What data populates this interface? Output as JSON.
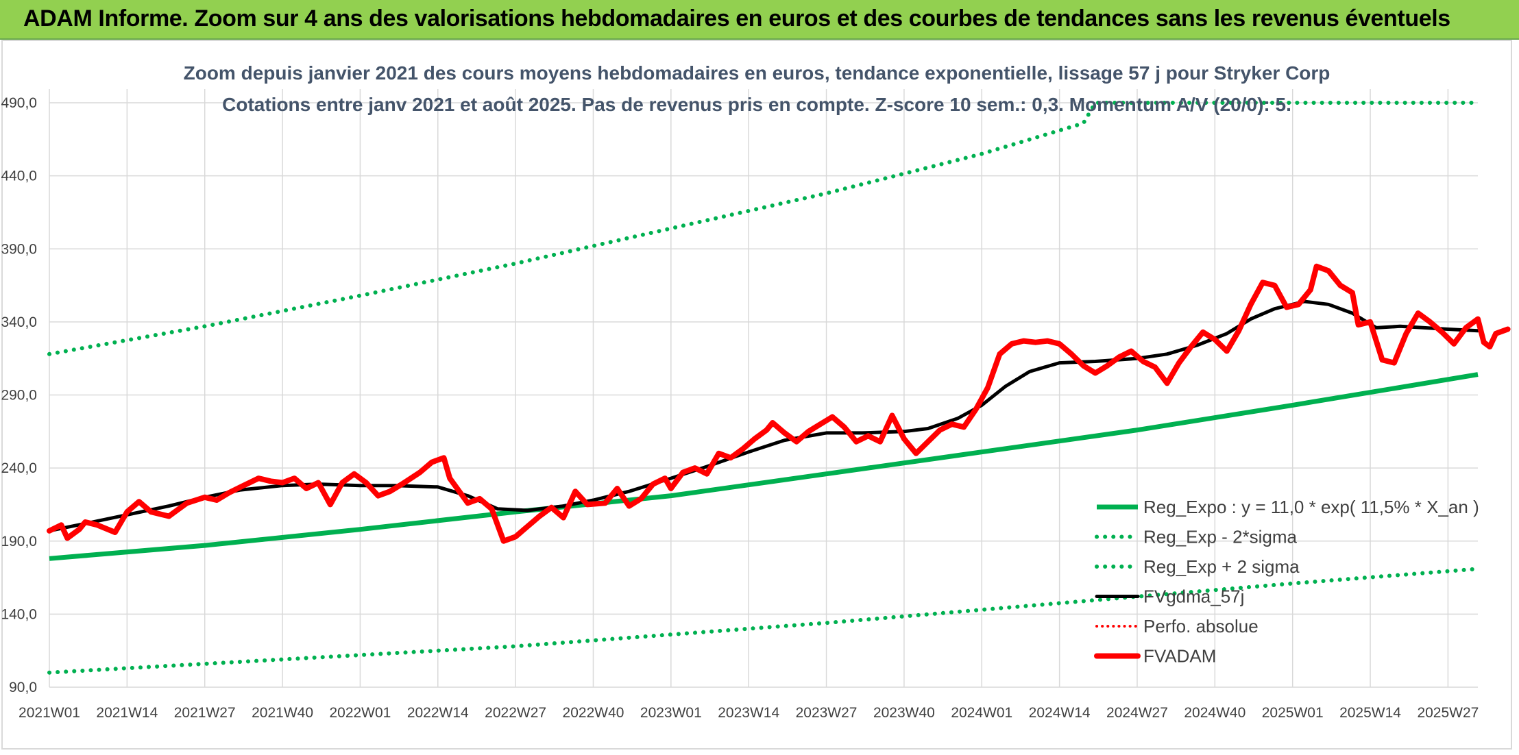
{
  "header": {
    "title": "ADAM Informe. Zoom sur 4 ans des valorisations hebdomadaires en euros et des courbes de tendances sans les revenus éventuels"
  },
  "colors": {
    "banner": "#92d050",
    "trend": "#00b050",
    "sigma": "#00b050",
    "smoothed": "#000000",
    "absolute": "#ff0000",
    "price": "#ff0000",
    "title_text": "#44546a"
  },
  "chart_data": {
    "type": "line",
    "title": "Zoom depuis janvier 2021 des cours moyens hebdomadaires en euros, tendance exponentielle, lissage 57 j pour Stryker Corp",
    "subtitle": "Cotations entre janv 2021 et août 2025. Pas de revenus pris en compte. Z-score 10 sem.: 0,3. Momentum A/V (20/0): 5.",
    "xlabel": "",
    "ylabel": "",
    "ylim": [
      90,
      490
    ],
    "yticks": [
      "90,0",
      "140,0",
      "190,0",
      "240,0",
      "290,0",
      "340,0",
      "390,0",
      "440,0",
      "490,0"
    ],
    "x_range_weeks": [
      0,
      239
    ],
    "xticks": [
      {
        "week": 0,
        "label": "2021W01"
      },
      {
        "week": 13,
        "label": "2021W14"
      },
      {
        "week": 26,
        "label": "2021W27"
      },
      {
        "week": 39,
        "label": "2021W40"
      },
      {
        "week": 52,
        "label": "2022W01"
      },
      {
        "week": 65,
        "label": "2022W14"
      },
      {
        "week": 78,
        "label": "2022W27"
      },
      {
        "week": 91,
        "label": "2022W40"
      },
      {
        "week": 104,
        "label": "2023W01"
      },
      {
        "week": 117,
        "label": "2023W14"
      },
      {
        "week": 130,
        "label": "2023W27"
      },
      {
        "week": 143,
        "label": "2023W40"
      },
      {
        "week": 156,
        "label": "2024W01"
      },
      {
        "week": 169,
        "label": "2024W14"
      },
      {
        "week": 182,
        "label": "2024W27"
      },
      {
        "week": 195,
        "label": "2024W40"
      },
      {
        "week": 208,
        "label": "2025W01"
      },
      {
        "week": 221,
        "label": "2025W14"
      },
      {
        "week": 234,
        "label": "2025W27"
      }
    ],
    "grid": true,
    "legend_position": "bottom-right",
    "series": [
      {
        "name": "Reg_Expo : y = 11,0 * exp( 11,5% *  X_an )",
        "key": "trend",
        "style": "solid",
        "color": "#00b050",
        "points": [
          [
            0,
            178
          ],
          [
            26,
            187
          ],
          [
            52,
            198
          ],
          [
            78,
            210
          ],
          [
            104,
            221
          ],
          [
            130,
            236
          ],
          [
            156,
            251
          ],
          [
            182,
            266
          ],
          [
            208,
            283
          ],
          [
            239,
            304
          ]
        ]
      },
      {
        "name": "Reg_Exp - 2*sigma",
        "key": "lower",
        "style": "dotted",
        "color": "#00b050",
        "points": [
          [
            0,
            100
          ],
          [
            26,
            106
          ],
          [
            52,
            112
          ],
          [
            78,
            118
          ],
          [
            104,
            126
          ],
          [
            130,
            134
          ],
          [
            156,
            143
          ],
          [
            182,
            152
          ],
          [
            208,
            161
          ],
          [
            239,
            171
          ]
        ]
      },
      {
        "name": "Reg_Exp + 2 sigma",
        "key": "upper",
        "style": "dotted",
        "color": "#00b050",
        "points": [
          [
            0,
            318
          ],
          [
            26,
            337
          ],
          [
            52,
            358
          ],
          [
            78,
            380
          ],
          [
            104,
            404
          ],
          [
            130,
            428
          ],
          [
            156,
            455
          ],
          [
            173,
            476
          ],
          [
            175,
            490
          ],
          [
            239,
            490
          ]
        ]
      },
      {
        "name": "FVgdma_57j",
        "key": "smoothed",
        "style": "solid",
        "color": "#000000",
        "points": [
          [
            0,
            197
          ],
          [
            6,
            202
          ],
          [
            13,
            208
          ],
          [
            20,
            214
          ],
          [
            26,
            220
          ],
          [
            32,
            225
          ],
          [
            39,
            228
          ],
          [
            45,
            229
          ],
          [
            52,
            228
          ],
          [
            58,
            228
          ],
          [
            65,
            227
          ],
          [
            70,
            221
          ],
          [
            75,
            212
          ],
          [
            80,
            211
          ],
          [
            86,
            214
          ],
          [
            91,
            218
          ],
          [
            97,
            224
          ],
          [
            104,
            233
          ],
          [
            110,
            241
          ],
          [
            117,
            251
          ],
          [
            123,
            259
          ],
          [
            130,
            264
          ],
          [
            136,
            264
          ],
          [
            143,
            265
          ],
          [
            147,
            267
          ],
          [
            152,
            274
          ],
          [
            156,
            283
          ],
          [
            160,
            296
          ],
          [
            164,
            306
          ],
          [
            169,
            312
          ],
          [
            175,
            313
          ],
          [
            182,
            315
          ],
          [
            187,
            318
          ],
          [
            192,
            324
          ],
          [
            197,
            332
          ],
          [
            201,
            342
          ],
          [
            205,
            349
          ],
          [
            210,
            354
          ],
          [
            214,
            352
          ],
          [
            218,
            346
          ],
          [
            222,
            336
          ],
          [
            226,
            337
          ],
          [
            230,
            336
          ],
          [
            234,
            335
          ],
          [
            239,
            334
          ]
        ]
      },
      {
        "name": "FVADAM",
        "key": "price",
        "style": "solid",
        "color": "#ff0000",
        "points": [
          [
            0,
            197
          ],
          [
            2,
            201
          ],
          [
            3,
            192
          ],
          [
            5,
            198
          ],
          [
            6,
            203
          ],
          [
            8,
            201
          ],
          [
            11,
            196
          ],
          [
            13,
            210
          ],
          [
            15,
            217
          ],
          [
            17,
            210
          ],
          [
            20,
            207
          ],
          [
            23,
            216
          ],
          [
            26,
            220
          ],
          [
            28,
            218
          ],
          [
            30,
            223
          ],
          [
            32,
            227
          ],
          [
            35,
            233
          ],
          [
            37,
            231
          ],
          [
            39,
            230
          ],
          [
            41,
            233
          ],
          [
            43,
            226
          ],
          [
            45,
            230
          ],
          [
            47,
            215
          ],
          [
            49,
            230
          ],
          [
            51,
            236
          ],
          [
            53,
            230
          ],
          [
            55,
            221
          ],
          [
            57,
            224
          ],
          [
            59,
            229
          ],
          [
            62,
            237
          ],
          [
            64,
            244
          ],
          [
            66,
            247
          ],
          [
            67,
            233
          ],
          [
            70,
            216
          ],
          [
            72,
            219
          ],
          [
            74,
            212
          ],
          [
            76,
            190
          ],
          [
            78,
            193
          ],
          [
            80,
            200
          ],
          [
            82,
            207
          ],
          [
            84,
            213
          ],
          [
            86,
            206
          ],
          [
            88,
            224
          ],
          [
            90,
            215
          ],
          [
            93,
            216
          ],
          [
            95,
            226
          ],
          [
            97,
            214
          ],
          [
            99,
            219
          ],
          [
            101,
            229
          ],
          [
            103,
            233
          ],
          [
            104,
            226
          ],
          [
            106,
            237
          ],
          [
            108,
            240
          ],
          [
            110,
            236
          ],
          [
            112,
            250
          ],
          [
            114,
            247
          ],
          [
            116,
            253
          ],
          [
            118,
            260
          ],
          [
            120,
            266
          ],
          [
            121,
            271
          ],
          [
            123,
            264
          ],
          [
            125,
            258
          ],
          [
            127,
            265
          ],
          [
            129,
            270
          ],
          [
            131,
            275
          ],
          [
            133,
            268
          ],
          [
            135,
            258
          ],
          [
            137,
            262
          ],
          [
            139,
            258
          ],
          [
            141,
            276
          ],
          [
            143,
            260
          ],
          [
            145,
            250
          ],
          [
            147,
            258
          ],
          [
            149,
            266
          ],
          [
            151,
            270
          ],
          [
            153,
            268
          ],
          [
            155,
            280
          ],
          [
            157,
            295
          ],
          [
            159,
            318
          ],
          [
            161,
            325
          ],
          [
            163,
            327
          ],
          [
            165,
            326
          ],
          [
            167,
            327
          ],
          [
            169,
            325
          ],
          [
            171,
            318
          ],
          [
            173,
            310
          ],
          [
            175,
            305
          ],
          [
            177,
            310
          ],
          [
            179,
            316
          ],
          [
            181,
            320
          ],
          [
            183,
            313
          ],
          [
            185,
            309
          ],
          [
            187,
            298
          ],
          [
            189,
            312
          ],
          [
            191,
            323
          ],
          [
            193,
            333
          ],
          [
            195,
            328
          ],
          [
            197,
            320
          ],
          [
            199,
            334
          ],
          [
            201,
            352
          ],
          [
            203,
            367
          ],
          [
            205,
            365
          ],
          [
            207,
            350
          ],
          [
            209,
            352
          ],
          [
            211,
            362
          ],
          [
            212,
            378
          ],
          [
            214,
            375
          ],
          [
            216,
            365
          ],
          [
            218,
            360
          ],
          [
            219,
            338
          ],
          [
            221,
            340
          ],
          [
            223,
            314
          ],
          [
            225,
            312
          ],
          [
            227,
            332
          ],
          [
            229,
            346
          ],
          [
            231,
            340
          ],
          [
            233,
            333
          ],
          [
            235,
            325
          ],
          [
            237,
            336
          ],
          [
            239,
            342
          ],
          [
            240,
            326
          ],
          [
            241,
            323
          ],
          [
            242,
            332
          ],
          [
            244,
            335
          ]
        ]
      }
    ],
    "extra_legend": [
      {
        "name": "Perfo. absolue",
        "key": "absolute",
        "style": "dotted",
        "color": "#ff0000"
      }
    ]
  }
}
